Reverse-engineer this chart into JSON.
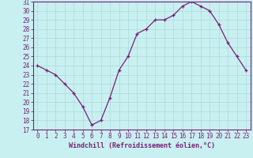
{
  "x": [
    0,
    1,
    2,
    3,
    4,
    5,
    6,
    7,
    8,
    9,
    10,
    11,
    12,
    13,
    14,
    15,
    16,
    17,
    18,
    19,
    20,
    21,
    22,
    23
  ],
  "y": [
    24,
    23.5,
    23,
    22,
    21,
    19.5,
    17.5,
    18,
    20.5,
    23.5,
    25,
    27.5,
    28,
    29,
    29,
    29.5,
    30.5,
    31,
    30.5,
    30,
    28.5,
    26.5,
    25,
    23.5
  ],
  "line_color": "#7B1E7B",
  "marker": "+",
  "bg_color": "#c8f0f0",
  "grid_color": "#b0dede",
  "xlabel": "Windchill (Refroidissement éolien,°C)",
  "xlabel_fontsize": 6.0,
  "tick_fontsize": 5.5,
  "ylim": [
    17,
    31
  ],
  "xlim": [
    -0.5,
    23.5
  ],
  "yticks": [
    17,
    18,
    19,
    20,
    21,
    22,
    23,
    24,
    25,
    26,
    27,
    28,
    29,
    30,
    31
  ],
  "xticks": [
    0,
    1,
    2,
    3,
    4,
    5,
    6,
    7,
    8,
    9,
    10,
    11,
    12,
    13,
    14,
    15,
    16,
    17,
    18,
    19,
    20,
    21,
    22,
    23
  ]
}
